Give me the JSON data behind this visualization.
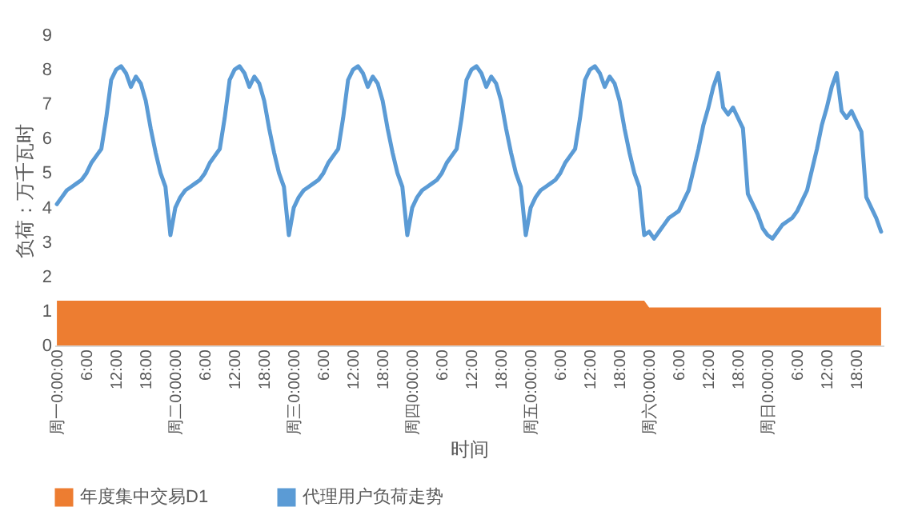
{
  "chart_data": {
    "type": "line",
    "xlabel": "时间",
    "ylabel": "负荷：万千瓦时",
    "categories": [
      "周一0:00:00",
      null,
      null,
      null,
      null,
      null,
      "6:00",
      null,
      null,
      null,
      null,
      null,
      "12:00",
      null,
      null,
      null,
      null,
      null,
      "18:00",
      null,
      null,
      null,
      null,
      null,
      "周二0:00:00",
      null,
      null,
      null,
      null,
      null,
      "6:00",
      null,
      null,
      null,
      null,
      null,
      "12:00",
      null,
      null,
      null,
      null,
      null,
      "18:00",
      null,
      null,
      null,
      null,
      null,
      "周三0:00:00",
      null,
      null,
      null,
      null,
      null,
      "6:00",
      null,
      null,
      null,
      null,
      null,
      "12:00",
      null,
      null,
      null,
      null,
      null,
      "18:00",
      null,
      null,
      null,
      null,
      null,
      "周四0:00:00",
      null,
      null,
      null,
      null,
      null,
      "6:00",
      null,
      null,
      null,
      null,
      null,
      "12:00",
      null,
      null,
      null,
      null,
      null,
      "18:00",
      null,
      null,
      null,
      null,
      null,
      "周五0:00:00",
      null,
      null,
      null,
      null,
      null,
      "6:00",
      null,
      null,
      null,
      null,
      null,
      "12:00",
      null,
      null,
      null,
      null,
      null,
      "18:00",
      null,
      null,
      null,
      null,
      null,
      "周六0:00:00",
      null,
      null,
      null,
      null,
      null,
      "6:00",
      null,
      null,
      null,
      null,
      null,
      "12:00",
      null,
      null,
      null,
      null,
      null,
      "18:00",
      null,
      null,
      null,
      null,
      null,
      "周日0:00:00",
      null,
      null,
      null,
      null,
      null,
      "6:00",
      null,
      null,
      null,
      null,
      null,
      "12:00",
      null,
      null,
      null,
      null,
      null,
      "18:00",
      null,
      null,
      null,
      null,
      null
    ],
    "series": [
      {
        "name": "年度集中交易D1",
        "type": "area",
        "color": "#ed7d31",
        "values": [
          1.3,
          1.3,
          1.3,
          1.3,
          1.3,
          1.3,
          1.3,
          1.3,
          1.3,
          1.3,
          1.3,
          1.3,
          1.3,
          1.3,
          1.3,
          1.3,
          1.3,
          1.3,
          1.3,
          1.3,
          1.3,
          1.3,
          1.3,
          1.3,
          1.3,
          1.3,
          1.3,
          1.3,
          1.3,
          1.3,
          1.3,
          1.3,
          1.3,
          1.3,
          1.3,
          1.3,
          1.3,
          1.3,
          1.3,
          1.3,
          1.3,
          1.3,
          1.3,
          1.3,
          1.3,
          1.3,
          1.3,
          1.3,
          1.3,
          1.3,
          1.3,
          1.3,
          1.3,
          1.3,
          1.3,
          1.3,
          1.3,
          1.3,
          1.3,
          1.3,
          1.3,
          1.3,
          1.3,
          1.3,
          1.3,
          1.3,
          1.3,
          1.3,
          1.3,
          1.3,
          1.3,
          1.3,
          1.3,
          1.3,
          1.3,
          1.3,
          1.3,
          1.3,
          1.3,
          1.3,
          1.3,
          1.3,
          1.3,
          1.3,
          1.3,
          1.3,
          1.3,
          1.3,
          1.3,
          1.3,
          1.3,
          1.3,
          1.3,
          1.3,
          1.3,
          1.3,
          1.3,
          1.3,
          1.3,
          1.3,
          1.3,
          1.3,
          1.3,
          1.3,
          1.3,
          1.3,
          1.3,
          1.3,
          1.3,
          1.3,
          1.3,
          1.3,
          1.3,
          1.3,
          1.3,
          1.3,
          1.3,
          1.3,
          1.3,
          1.3,
          1.1,
          1.1,
          1.1,
          1.1,
          1.1,
          1.1,
          1.1,
          1.1,
          1.1,
          1.1,
          1.1,
          1.1,
          1.1,
          1.1,
          1.1,
          1.1,
          1.1,
          1.1,
          1.1,
          1.1,
          1.1,
          1.1,
          1.1,
          1.1,
          1.1,
          1.1,
          1.1,
          1.1,
          1.1,
          1.1,
          1.1,
          1.1,
          1.1,
          1.1,
          1.1,
          1.1,
          1.1,
          1.1,
          1.1,
          1.1,
          1.1,
          1.1,
          1.1,
          1.1,
          1.1,
          1.1,
          1.1,
          1.1
        ]
      },
      {
        "name": "代理用户负荷走势",
        "color": "#5b9bd5",
        "values": [
          4.1,
          4.3,
          4.5,
          4.6,
          4.7,
          4.8,
          5.0,
          5.3,
          5.5,
          5.7,
          6.6,
          7.7,
          8.0,
          8.1,
          7.9,
          7.5,
          7.8,
          7.6,
          7.1,
          6.3,
          5.6,
          5.0,
          4.6,
          3.2,
          4.0,
          4.3,
          4.5,
          4.6,
          4.7,
          4.8,
          5.0,
          5.3,
          5.5,
          5.7,
          6.6,
          7.7,
          8.0,
          8.1,
          7.9,
          7.5,
          7.8,
          7.6,
          7.1,
          6.3,
          5.6,
          5.0,
          4.6,
          3.2,
          4.0,
          4.3,
          4.5,
          4.6,
          4.7,
          4.8,
          5.0,
          5.3,
          5.5,
          5.7,
          6.6,
          7.7,
          8.0,
          8.1,
          7.9,
          7.5,
          7.8,
          7.6,
          7.1,
          6.3,
          5.6,
          5.0,
          4.6,
          3.2,
          4.0,
          4.3,
          4.5,
          4.6,
          4.7,
          4.8,
          5.0,
          5.3,
          5.5,
          5.7,
          6.6,
          7.7,
          8.0,
          8.1,
          7.9,
          7.5,
          7.8,
          7.6,
          7.1,
          6.3,
          5.6,
          5.0,
          4.6,
          3.2,
          4.0,
          4.3,
          4.5,
          4.6,
          4.7,
          4.8,
          5.0,
          5.3,
          5.5,
          5.7,
          6.6,
          7.7,
          8.0,
          8.1,
          7.9,
          7.5,
          7.8,
          7.6,
          7.1,
          6.3,
          5.6,
          5.0,
          4.6,
          3.2,
          3.3,
          3.1,
          3.3,
          3.5,
          3.7,
          3.8,
          3.9,
          4.2,
          4.5,
          5.1,
          5.7,
          6.4,
          6.9,
          7.5,
          7.9,
          6.9,
          6.7,
          6.9,
          6.6,
          6.3,
          4.4,
          4.1,
          3.8,
          3.4,
          3.2,
          3.1,
          3.3,
          3.5,
          3.6,
          3.7,
          3.9,
          4.2,
          4.5,
          5.1,
          5.7,
          6.4,
          6.9,
          7.5,
          7.9,
          6.8,
          6.6,
          6.8,
          6.5,
          6.2,
          4.3,
          4.0,
          3.7,
          3.3
        ]
      }
    ],
    "ylim": [
      0,
      9
    ],
    "yticks": [
      0,
      1,
      2,
      3,
      4,
      5,
      6,
      7,
      8,
      9
    ],
    "legend": "bottom"
  }
}
